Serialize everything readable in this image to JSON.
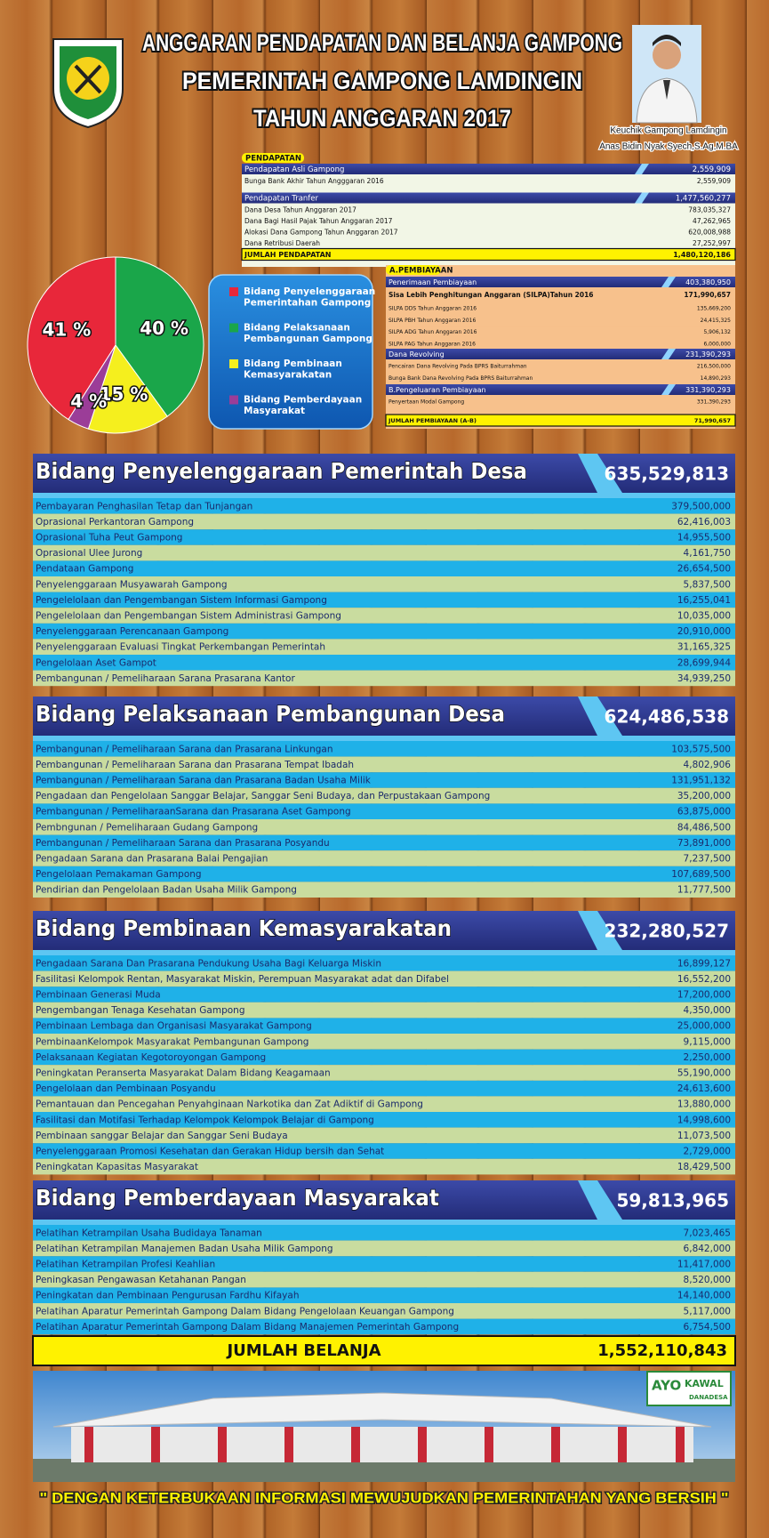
{
  "header": {
    "title_lines": [
      "ANGGARAN PENDAPATAN DAN BELANJA GAMPONG",
      "PEMERINTAH GAMPONG LAMDINGIN",
      "TAHUN ANGGARAN 2017"
    ],
    "caption": [
      "Keuchik Gampong Lamdingin",
      "Anas Bidin Nyak Syech,S.Ag,M.BA"
    ]
  },
  "pendapatan": {
    "label": "PENDAPATAN",
    "groups": [
      {
        "name": "Pendapatan Asli Gampong",
        "amount": "2,559,909",
        "items": [
          {
            "name": "Bunga Bank Akhir Tahun Angggaran 2016",
            "amount": "2,559,909"
          }
        ]
      },
      {
        "name": "Pendapatan Tranfer",
        "amount": "1,477,560,277",
        "items": [
          {
            "name": "Dana Desa Tahun Anggaran 2017",
            "amount": "783,035,327"
          },
          {
            "name": "Dana Bagi Hasil Pajak Tahun Anggaran 2017",
            "amount": "47,262,965"
          },
          {
            "name": "Alokasi Dana Gampong Tahun Anggaran 2017",
            "amount": "620,008,988"
          },
          {
            "name": "Dana Retribusi Daerah",
            "amount": "27,252,997"
          }
        ]
      }
    ],
    "total": {
      "name": "JUMLAH PENDAPATAN",
      "amount": "1,480,120,186"
    }
  },
  "pembiayaan": {
    "label": "A.PEMBIAYAAN",
    "penerimaan": {
      "name": "Penerimaan Pembiayaan",
      "amount": "403,380,950"
    },
    "silpa": {
      "name": "Sisa Lebih Penghitungan Anggaran (SILPA)Tahun 2016",
      "amount": "171,990,657",
      "items": [
        {
          "name": "SILPA DDS Tahun Anggaran 2016",
          "amount": "135,669,200"
        },
        {
          "name": "SILPA PBH Tahun Anggaran 2016",
          "amount": "24,415,325"
        },
        {
          "name": "SILPA ADG Tahun  Anggaran  2016",
          "amount": "5,906,132"
        },
        {
          "name": "SILPA PAG  Tahun Anggaran 2016",
          "amount": "6,000,000"
        }
      ]
    },
    "revolving": {
      "name": "Dana Revolving",
      "amount": "231,390,293",
      "items": [
        {
          "name": "Pencairan Dana Revolving Pada BPRS Baiturrahman",
          "amount": "216,500,000"
        },
        {
          "name": "Bunga Bank Dana Revolving Pada BPRS Baiturrahman",
          "amount": "14,890,293"
        }
      ]
    },
    "pengeluaran": {
      "name": "B.Pengeluaran Pembiayaan",
      "amount": "331,390,293",
      "items": [
        {
          "name": "Penyertaan Modal Gampong",
          "amount": "331,390,293"
        }
      ]
    },
    "total": {
      "name": "JUMLAH PEMBIAYAAN (A-B)",
      "amount": "71,990,657"
    }
  },
  "chart_data": {
    "type": "pie",
    "categories": [
      "Bidang Penyelenggaraan Pemerintahan Gampong",
      "Bidang Pelaksanaan Pembangunan Gampong",
      "Bidang Pembinaan Kemasyarakatan",
      "Bidang Pemberdayaan Masyarakat"
    ],
    "values": [
      41,
      40,
      15,
      4
    ],
    "value_labels": [
      "41 %",
      "40 %",
      "15 %",
      "4 %"
    ],
    "colors": [
      "#e8273a",
      "#1aa64a",
      "#f5ef1e",
      "#9b3d98"
    ]
  },
  "sections": [
    {
      "title": "Bidang Penyelenggaraan Pemerintah Desa",
      "amount": "635,529,813",
      "items": [
        {
          "name": "Pembayaran Penghasilan Tetap dan Tunjangan",
          "amount": "379,500,000"
        },
        {
          "name": "Oprasional Perkantoran Gampong",
          "amount": "62,416,003"
        },
        {
          "name": "Oprasional Tuha Peut Gampong",
          "amount": "14,955,500"
        },
        {
          "name": "Oprasional Ulee Jurong",
          "amount": "4,161,750"
        },
        {
          "name": "Pendataan Gampong",
          "amount": "26,654,500"
        },
        {
          "name": "Penyelenggaraan Musyawarah Gampong",
          "amount": "5,837,500"
        },
        {
          "name": "Pengelelolaan dan Pengembangan Sistem Informasi Gampong",
          "amount": "16,255,041"
        },
        {
          "name": "Pengelelolaan dan Pengembangan Sistem Administrasi Gampong",
          "amount": "10,035,000"
        },
        {
          "name": "Penyelenggaraan  Perencanaan Gampong",
          "amount": "20,910,000"
        },
        {
          "name": "Penyelenggaraan Evaluasi Tingkat Perkembangan Pemerintah",
          "amount": "31,165,325"
        },
        {
          "name": "Pengelolaan Aset Gampot",
          "amount": "28,699,944"
        },
        {
          "name": "Pembangunan / Pemeliharaan  Sarana Prasarana Kantor",
          "amount": "34,939,250"
        }
      ]
    },
    {
      "title": "Bidang Pelaksanaan Pembangunan Desa",
      "amount": "624,486,538",
      "items": [
        {
          "name": "Pembangunan / Pemeliharaan Sarana dan Prasarana Linkungan",
          "amount": "103,575,500"
        },
        {
          "name": "Pembangunan / Pemeliharaan Sarana dan Prasarana Tempat Ibadah",
          "amount": "4,802,906"
        },
        {
          "name": "Pembangunan / Pemeliharaan Sarana dan Prasarana Badan Usaha Milik",
          "amount": "131,951,132"
        },
        {
          "name": "Pengadaan dan Pengelolaan Sanggar Belajar, Sanggar Seni Budaya, dan Perpustakaan Gampong",
          "amount": "35,200,000"
        },
        {
          "name": "Pembangunan / PemeliharaanSarana dan Prasarana Aset Gampong",
          "amount": "63,875,000"
        },
        {
          "name": "Pembngunan / Pemeliharaan Gudang Gampong",
          "amount": "84,486,500"
        },
        {
          "name": "Pembangunan / Pemeliharaan Sarana dan Prasarana Posyandu",
          "amount": "73,891,000"
        },
        {
          "name": "Pengadaan Sarana dan Prasarana Balai Pengajian",
          "amount": "7,237,500"
        },
        {
          "name": "Pengelolaan Pemakaman Gampong",
          "amount": "107,689,500"
        },
        {
          "name": "Pendirian dan Pengelolaan Badan Usaha Milik Gampong",
          "amount": "11,777,500"
        }
      ]
    },
    {
      "title": "Bidang Pembinaan Kemasyarakatan",
      "amount": "232,280,527",
      "items": [
        {
          "name": "Pengadaan Sarana Dan Prasarana Pendukung Usaha Bagi Keluarga Miskin",
          "amount": "16,899,127"
        },
        {
          "name": "Fasilitasi Kelompok Rentan, Masyarakat Miskin, Perempuan Masyarakat adat dan Difabel",
          "amount": "16,552,200"
        },
        {
          "name": "Pembinaan Generasi Muda",
          "amount": "17,200,000"
        },
        {
          "name": "Pengembangan Tenaga Kesehatan Gampong",
          "amount": "4,350,000"
        },
        {
          "name": "Pembinaan Lembaga dan Organisasi Masyarakat Gampong",
          "amount": "25,000,000"
        },
        {
          "name": "PembinaanKelompok Masyarakat Pembangunan Gampong",
          "amount": "9,115,000"
        },
        {
          "name": "Pelaksanaan Kegiatan Kegotoroyongan Gampong",
          "amount": "2,250,000"
        },
        {
          "name": "Peningkatan Peranserta Masyarakat Dalam Bidang Keagamaan",
          "amount": "55,190,000"
        },
        {
          "name": "Pengelolaan dan Pembinaan Posyandu",
          "amount": "24,613,600"
        },
        {
          "name": "Pemantauan dan Pencegahan Penyahginaan Narkotika dan Zat Adiktif di Gampong",
          "amount": "13,880,000"
        },
        {
          "name": "Fasilitasi dan Motifasi Terhadap Kelompok Kelompok Belajar di Gampong",
          "amount": "14,998,600"
        },
        {
          "name": "Pembinaan sanggar Belajar dan Sanggar Seni Budaya",
          "amount": "11,073,500"
        },
        {
          "name": "Penyelenggaraan Promosi Kesehatan dan Gerakan Hidup bersih dan Sehat",
          "amount": "2,729,000"
        },
        {
          "name": "Peningkatan Kapasitas Masyarakat",
          "amount": "18,429,500"
        }
      ]
    },
    {
      "title": "Bidang Pemberdayaan Masyarakat",
      "amount": "59,813,965",
      "items": [
        {
          "name": "Pelatihan Ketrampilan Usaha  Budidaya Tanaman",
          "amount": "7,023,465"
        },
        {
          "name": "Pelatihan Ketrampilan Manajemen Badan Usaha Milik Gampong",
          "amount": "6,842,000"
        },
        {
          "name": "Pelatihan Ketrampilan Profesi Keahlian",
          "amount": "11,417,000"
        },
        {
          "name": "Peningkasan Pengawasan Ketahanan Pangan",
          "amount": "8,520,000"
        },
        {
          "name": "Peningkatan dan Pembinaan Pengurusan Fardhu Kifayah",
          "amount": "14,140,000"
        },
        {
          "name": "Pelatihan Aparatur Pemerintah Gampong Dalam Bidang Pengelolaan Keuangan Gampong",
          "amount": "5,117,000"
        },
        {
          "name": "Pelatihan Aparatur Pemerintah Gampong Dalam Bidang Manajemen Pemerintah Gampong",
          "amount": "6,754,500"
        }
      ]
    }
  ],
  "jumlah_belanja": {
    "name": "JUMLAH BELANJA",
    "amount": "1,552,110,843"
  },
  "badge": [
    "AYO",
    "KAWAL",
    "DANADESA"
  ],
  "footer": "\" DENGAN KETERBUKAAN INFORMASI MEWUJUDKAN PEMERINTAHAN YANG BERSIH \""
}
